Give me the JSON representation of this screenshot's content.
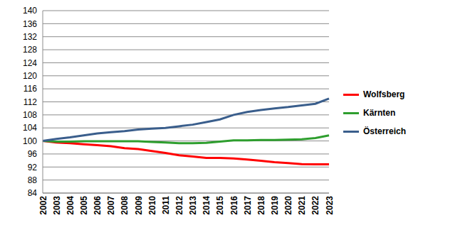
{
  "chart_data": {
    "type": "line",
    "categories": [
      "2002",
      "2003",
      "2004",
      "2005",
      "2006",
      "2007",
      "2008",
      "2009",
      "2010",
      "2011",
      "2012",
      "2013",
      "2014",
      "2015",
      "2016",
      "2017",
      "2018",
      "2019",
      "2020",
      "2021",
      "2022",
      "2023"
    ],
    "series": [
      {
        "name": "Wolfsberg",
        "color": "#ff0000",
        "values": [
          100,
          99.5,
          99.3,
          99.0,
          98.7,
          98.4,
          97.8,
          97.5,
          96.9,
          96.3,
          95.6,
          95.2,
          94.8,
          94.8,
          94.6,
          94.3,
          93.9,
          93.5,
          93.2,
          92.9,
          92.8,
          92.8
        ]
      },
      {
        "name": "Kärnten",
        "color": "#2e9e2e",
        "values": [
          100,
          99.8,
          99.8,
          99.9,
          99.9,
          99.9,
          99.9,
          99.9,
          99.7,
          99.5,
          99.3,
          99.3,
          99.4,
          99.8,
          100.2,
          100.2,
          100.3,
          100.3,
          100.4,
          100.5,
          100.9,
          101.7
        ]
      },
      {
        "name": "Österreich",
        "color": "#3a5e8c",
        "values": [
          100,
          100.6,
          101.1,
          101.7,
          102.3,
          102.7,
          103.0,
          103.5,
          103.8,
          104.0,
          104.5,
          105.0,
          105.8,
          106.6,
          108.0,
          108.9,
          109.5,
          110.0,
          110.4,
          110.9,
          111.4,
          113.0
        ]
      }
    ],
    "ylim": [
      84,
      140
    ],
    "yticks": [
      84,
      88,
      92,
      96,
      100,
      104,
      108,
      112,
      116,
      120,
      124,
      128,
      132,
      136,
      140
    ],
    "grid": true,
    "legend": "right"
  }
}
